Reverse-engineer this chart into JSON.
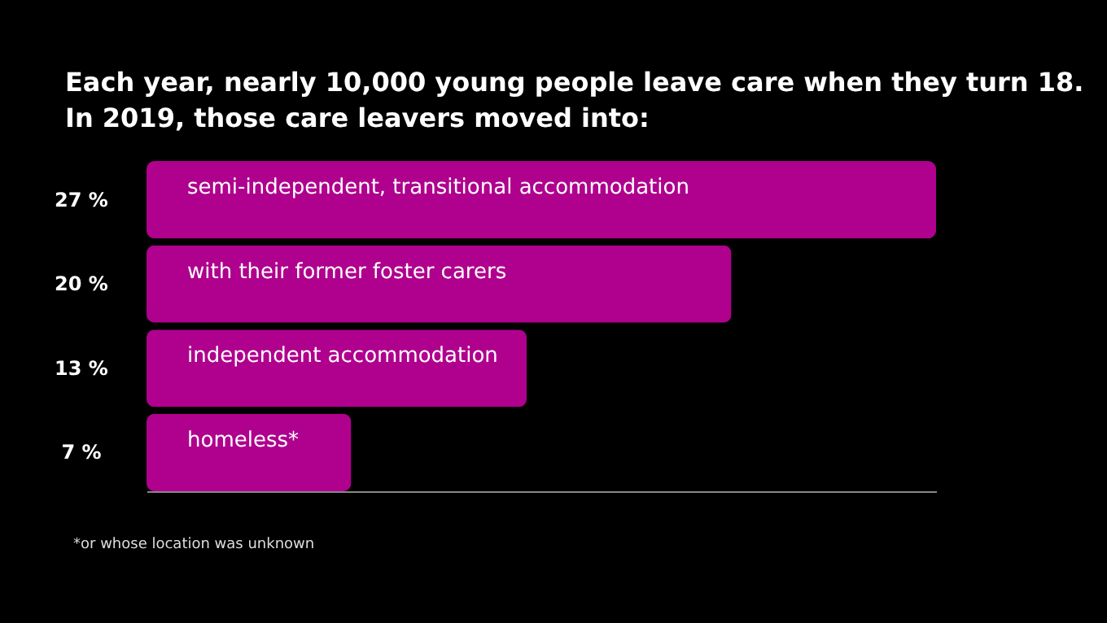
{
  "chart_data": {
    "type": "bar",
    "orientation": "horizontal",
    "relative": false,
    "title": "Each year, nearly 10,000 young people leave care when they turn 18.",
    "subtitle": "In 2019, those care leavers moved into:",
    "categories": [
      "semi-independent, transitional accommodation",
      "with their former foster carers",
      "independent accommodation",
      "homeless*"
    ],
    "values": [
      27,
      20,
      13,
      7
    ],
    "value_labels": [
      "27 %",
      "20 %",
      "13 %",
      "7 %"
    ],
    "color": "#b0008e",
    "annotations": [
      "*or whose location was unknown"
    ]
  }
}
